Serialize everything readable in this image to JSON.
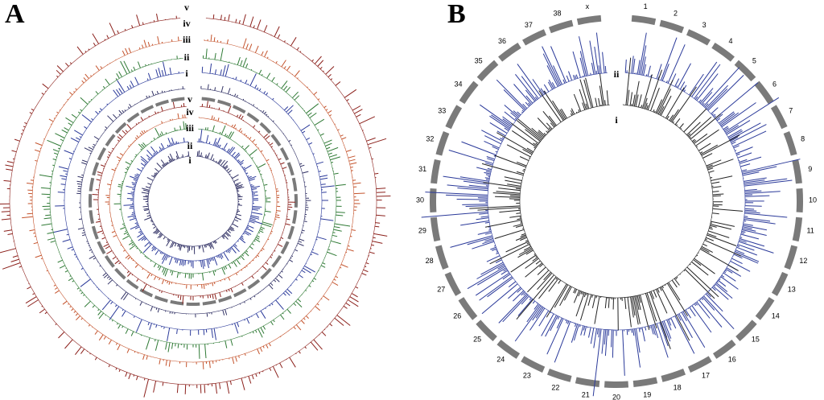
{
  "panels": [
    {
      "label": "A",
      "outer_ring_labels": [
        "v",
        "iv",
        "iii",
        "ii",
        "i"
      ],
      "inner_ring_labels": [
        "v",
        "iv",
        "iii",
        "ii",
        "i"
      ]
    },
    {
      "label": "B",
      "ring_labels": [
        "ii",
        "i"
      ],
      "chromosomes": [
        "1",
        "2",
        "3",
        "4",
        "5",
        "6",
        "7",
        "8",
        "9",
        "10",
        "11",
        "12",
        "13",
        "14",
        "15",
        "16",
        "17",
        "18",
        "19",
        "20",
        "21",
        "22",
        "23",
        "24",
        "25",
        "26",
        "27",
        "28",
        "29",
        "30",
        "31",
        "32",
        "33",
        "34",
        "35",
        "36",
        "37",
        "38",
        "x"
      ]
    }
  ]
}
